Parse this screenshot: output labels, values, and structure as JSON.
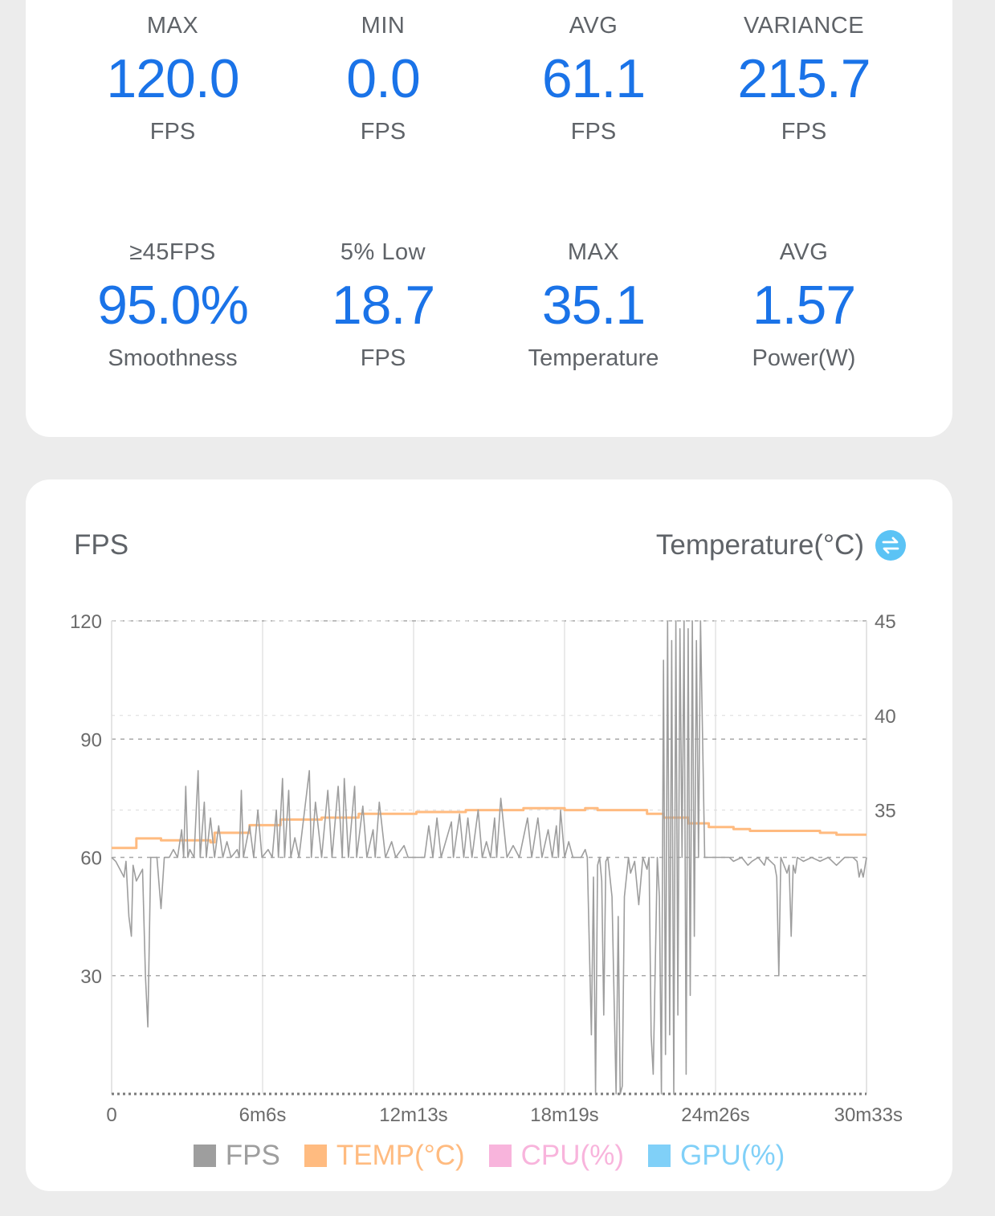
{
  "stats": [
    {
      "label": "MAX",
      "value": "120.0",
      "unit": "FPS"
    },
    {
      "label": "MIN",
      "value": "0.0",
      "unit": "FPS"
    },
    {
      "label": "AVG",
      "value": "61.1",
      "unit": "FPS"
    },
    {
      "label": "VARIANCE",
      "value": "215.7",
      "unit": "FPS"
    },
    {
      "label": "≥45FPS",
      "value": "95.0%",
      "unit": "Smoothness"
    },
    {
      "label": "5% Low",
      "value": "18.7",
      "unit": "FPS"
    },
    {
      "label": "MAX",
      "value": "35.1",
      "unit": "Temperature"
    },
    {
      "label": "AVG",
      "value": "1.57",
      "unit": "Power(W)"
    }
  ],
  "chart_header": {
    "left_title": "FPS",
    "right_title": "Temperature(°C)",
    "swap_icon": "swap-vertical-icon"
  },
  "colors": {
    "accent": "#1a73e8",
    "fps": "#9e9e9e",
    "temp": "#ffbb80",
    "cpu": "#f8b4dc",
    "gpu": "#80d0f8"
  },
  "chart_data": {
    "type": "line",
    "x_ticks": [
      "0",
      "6m6s",
      "12m13s",
      "18m19s",
      "24m26s",
      "30m33s"
    ],
    "xlim_seconds": [
      0,
      1833
    ],
    "y_left_ticks": [
      "120",
      "90",
      "60",
      "30"
    ],
    "y_left_lim": [
      0,
      120
    ],
    "y_right_ticks": [
      "45",
      "40",
      "35"
    ],
    "y_right_lim": [
      20,
      45
    ],
    "grid": true,
    "legend_position": "bottom",
    "legend": [
      {
        "name": "FPS",
        "color": "#9e9e9e"
      },
      {
        "name": "TEMP(°C)",
        "color": "#ffbb80"
      },
      {
        "name": "CPU(%)",
        "color": "#f8b4dc"
      },
      {
        "name": "GPU(%)",
        "color": "#80d0f8"
      }
    ],
    "series": [
      {
        "name": "TEMP(°C)",
        "axis": "right",
        "points": [
          [
            0,
            33.0
          ],
          [
            50,
            33.0
          ],
          [
            60,
            33.5
          ],
          [
            120,
            33.4
          ],
          [
            240,
            33.3
          ],
          [
            250,
            33.8
          ],
          [
            330,
            33.8
          ],
          [
            335,
            34.2
          ],
          [
            380,
            34.2
          ],
          [
            410,
            34.5
          ],
          [
            510,
            34.6
          ],
          [
            595,
            34.6
          ],
          [
            600,
            34.8
          ],
          [
            740,
            34.9
          ],
          [
            860,
            35.0
          ],
          [
            1000,
            35.1
          ],
          [
            1050,
            35.1
          ],
          [
            1060,
            35.1
          ],
          [
            1100,
            35.0
          ],
          [
            1150,
            35.1
          ],
          [
            1180,
            35.0
          ],
          [
            1240,
            35.0
          ],
          [
            1300,
            34.8
          ],
          [
            1340,
            34.6
          ],
          [
            1400,
            34.3
          ],
          [
            1450,
            34.1
          ],
          [
            1510,
            34.0
          ],
          [
            1550,
            33.9
          ],
          [
            1720,
            33.8
          ],
          [
            1760,
            33.7
          ],
          [
            1833,
            33.7
          ]
        ]
      },
      {
        "name": "FPS",
        "axis": "left",
        "points": [
          [
            0,
            60
          ],
          [
            10,
            59
          ],
          [
            20,
            57
          ],
          [
            30,
            55
          ],
          [
            35,
            59
          ],
          [
            42,
            45
          ],
          [
            48,
            40
          ],
          [
            52,
            58
          ],
          [
            60,
            54
          ],
          [
            75,
            57
          ],
          [
            82,
            30
          ],
          [
            88,
            17
          ],
          [
            95,
            60
          ],
          [
            110,
            60
          ],
          [
            120,
            47
          ],
          [
            128,
            60
          ],
          [
            140,
            60
          ],
          [
            150,
            62
          ],
          [
            160,
            60
          ],
          [
            170,
            67
          ],
          [
            175,
            60
          ],
          [
            180,
            78
          ],
          [
            185,
            60
          ],
          [
            190,
            62
          ],
          [
            200,
            60
          ],
          [
            210,
            82
          ],
          [
            215,
            60
          ],
          [
            225,
            74
          ],
          [
            230,
            60
          ],
          [
            240,
            70
          ],
          [
            250,
            60
          ],
          [
            260,
            68
          ],
          [
            270,
            60
          ],
          [
            280,
            64
          ],
          [
            290,
            60
          ],
          [
            305,
            62
          ],
          [
            310,
            60
          ],
          [
            315,
            77
          ],
          [
            320,
            60
          ],
          [
            335,
            68
          ],
          [
            345,
            60
          ],
          [
            355,
            72
          ],
          [
            365,
            60
          ],
          [
            380,
            62
          ],
          [
            390,
            60
          ],
          [
            400,
            72
          ],
          [
            405,
            60
          ],
          [
            415,
            80
          ],
          [
            420,
            60
          ],
          [
            430,
            77
          ],
          [
            435,
            60
          ],
          [
            445,
            65
          ],
          [
            455,
            60
          ],
          [
            480,
            82
          ],
          [
            485,
            60
          ],
          [
            495,
            74
          ],
          [
            510,
            60
          ],
          [
            525,
            77
          ],
          [
            535,
            60
          ],
          [
            550,
            78
          ],
          [
            560,
            60
          ],
          [
            565,
            80
          ],
          [
            575,
            60
          ],
          [
            590,
            78
          ],
          [
            595,
            60
          ],
          [
            610,
            73
          ],
          [
            620,
            60
          ],
          [
            635,
            67
          ],
          [
            640,
            60
          ],
          [
            650,
            74
          ],
          [
            665,
            60
          ],
          [
            680,
            64
          ],
          [
            690,
            60
          ],
          [
            710,
            63
          ],
          [
            720,
            60
          ],
          [
            760,
            60
          ],
          [
            770,
            68
          ],
          [
            780,
            60
          ],
          [
            790,
            70
          ],
          [
            800,
            60
          ],
          [
            825,
            69
          ],
          [
            830,
            60
          ],
          [
            845,
            71
          ],
          [
            855,
            60
          ],
          [
            865,
            70
          ],
          [
            875,
            60
          ],
          [
            890,
            72
          ],
          [
            900,
            60
          ],
          [
            910,
            64
          ],
          [
            920,
            60
          ],
          [
            930,
            70
          ],
          [
            935,
            60
          ],
          [
            945,
            75
          ],
          [
            960,
            60
          ],
          [
            975,
            63
          ],
          [
            990,
            60
          ],
          [
            1010,
            70
          ],
          [
            1020,
            60
          ],
          [
            1035,
            70
          ],
          [
            1045,
            60
          ],
          [
            1060,
            67
          ],
          [
            1070,
            60
          ],
          [
            1080,
            68
          ],
          [
            1085,
            60
          ],
          [
            1090,
            72
          ],
          [
            1100,
            60
          ],
          [
            1110,
            64
          ],
          [
            1120,
            60
          ],
          [
            1140,
            60
          ],
          [
            1150,
            62
          ],
          [
            1155,
            60
          ],
          [
            1165,
            15
          ],
          [
            1170,
            55
          ],
          [
            1175,
            0
          ],
          [
            1180,
            58
          ],
          [
            1185,
            60
          ],
          [
            1190,
            54
          ],
          [
            1195,
            20
          ],
          [
            1200,
            59
          ],
          [
            1205,
            60
          ],
          [
            1215,
            50
          ],
          [
            1220,
            25
          ],
          [
            1225,
            0
          ],
          [
            1230,
            45
          ],
          [
            1235,
            0
          ],
          [
            1240,
            2
          ],
          [
            1245,
            50
          ],
          [
            1255,
            60
          ],
          [
            1260,
            56
          ],
          [
            1270,
            59
          ],
          [
            1280,
            48
          ],
          [
            1290,
            60
          ],
          [
            1300,
            57
          ],
          [
            1305,
            60
          ],
          [
            1310,
            15
          ],
          [
            1315,
            5
          ],
          [
            1325,
            60
          ],
          [
            1330,
            50
          ],
          [
            1335,
            0
          ],
          [
            1340,
            110
          ],
          [
            1345,
            10
          ],
          [
            1350,
            120
          ],
          [
            1355,
            15
          ],
          [
            1360,
            115
          ],
          [
            1365,
            0
          ],
          [
            1370,
            120
          ],
          [
            1375,
            20
          ],
          [
            1380,
            118
          ],
          [
            1385,
            60
          ],
          [
            1390,
            120
          ],
          [
            1395,
            5
          ],
          [
            1400,
            118
          ],
          [
            1405,
            25
          ],
          [
            1410,
            120
          ],
          [
            1415,
            40
          ],
          [
            1420,
            115
          ],
          [
            1425,
            60
          ],
          [
            1430,
            120
          ],
          [
            1440,
            60
          ],
          [
            1500,
            60
          ],
          [
            1510,
            59
          ],
          [
            1530,
            60
          ],
          [
            1545,
            58
          ],
          [
            1555,
            59
          ],
          [
            1570,
            60
          ],
          [
            1585,
            58
          ],
          [
            1590,
            60
          ],
          [
            1610,
            58
          ],
          [
            1615,
            55
          ],
          [
            1620,
            30
          ],
          [
            1625,
            60
          ],
          [
            1640,
            56
          ],
          [
            1645,
            58
          ],
          [
            1650,
            40
          ],
          [
            1655,
            58
          ],
          [
            1660,
            56
          ],
          [
            1665,
            60
          ],
          [
            1680,
            59
          ],
          [
            1700,
            60
          ],
          [
            1720,
            59
          ],
          [
            1740,
            60
          ],
          [
            1760,
            58
          ],
          [
            1780,
            60
          ],
          [
            1800,
            60
          ],
          [
            1810,
            59
          ],
          [
            1815,
            55
          ],
          [
            1820,
            57
          ],
          [
            1825,
            55
          ],
          [
            1833,
            60
          ]
        ]
      }
    ]
  }
}
